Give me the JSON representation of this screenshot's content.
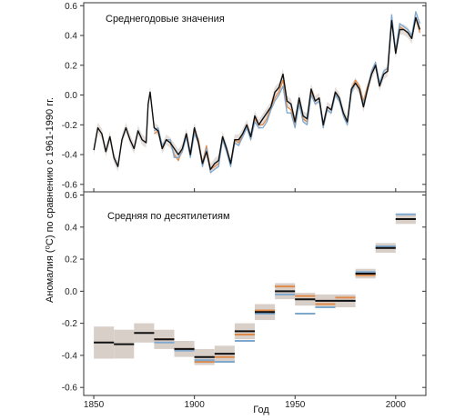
{
  "chart_data": {
    "type": "line",
    "ylabel": "Аномалия (⁰С) по сравнению с 1961-1990 гг.",
    "xlabel": "Год",
    "xlim": [
      1845,
      2015
    ],
    "x_ticks": [
      1850,
      1900,
      1950,
      2000
    ],
    "x_tick_labels": [
      "1850",
      "1900",
      "1950",
      "2000"
    ],
    "legend": "none",
    "grid": false,
    "series_colors": {
      "black": "#111111",
      "blue": "#7fa8cf",
      "orange": "#e08a4a",
      "grey": "#9a9a9a"
    },
    "panels": [
      {
        "type": "line",
        "title": "Среднегодовые значения",
        "ylim": [
          -0.65,
          0.62
        ],
        "y_ticks": [
          0.6,
          0.4,
          0.2,
          0.0,
          -0.2,
          -0.4,
          -0.6
        ],
        "y_tick_labels": [
          "0.6",
          "0.4",
          "0.2",
          "0.0",
          "-0.2",
          "-0.4",
          "-0.6"
        ],
        "series": [
          {
            "color": "black",
            "x": [
              1850,
              1852,
              1854,
              1856,
              1858,
              1860,
              1862,
              1864,
              1866,
              1868,
              1870,
              1872,
              1874,
              1876,
              1877,
              1878,
              1880,
              1882,
              1884,
              1886,
              1888,
              1890,
              1892,
              1894,
              1896,
              1898,
              1900,
              1902,
              1904,
              1906,
              1908,
              1910,
              1912,
              1914,
              1916,
              1918,
              1920,
              1922,
              1924,
              1926,
              1928,
              1930,
              1932,
              1934,
              1936,
              1938,
              1940,
              1942,
              1944,
              1946,
              1948,
              1950,
              1952,
              1954,
              1956,
              1958,
              1960,
              1962,
              1964,
              1966,
              1968,
              1970,
              1972,
              1974,
              1976,
              1978,
              1980,
              1982,
              1984,
              1986,
              1988,
              1990,
              1992,
              1994,
              1996,
              1998,
              2000,
              2002,
              2004,
              2006,
              2008,
              2010,
              2012
            ],
            "y": [
              -0.37,
              -0.22,
              -0.26,
              -0.38,
              -0.28,
              -0.42,
              -0.48,
              -0.3,
              -0.22,
              -0.3,
              -0.36,
              -0.24,
              -0.3,
              -0.32,
              -0.06,
              0.02,
              -0.22,
              -0.24,
              -0.36,
              -0.3,
              -0.32,
              -0.36,
              -0.4,
              -0.36,
              -0.26,
              -0.4,
              -0.22,
              -0.32,
              -0.46,
              -0.38,
              -0.5,
              -0.46,
              -0.44,
              -0.28,
              -0.36,
              -0.46,
              -0.3,
              -0.3,
              -0.26,
              -0.2,
              -0.28,
              -0.14,
              -0.2,
              -0.16,
              -0.12,
              -0.08,
              0.02,
              0.05,
              0.14,
              -0.04,
              -0.06,
              -0.18,
              -0.02,
              -0.14,
              -0.16,
              0.04,
              -0.04,
              -0.02,
              -0.2,
              -0.08,
              -0.1,
              0.02,
              -0.02,
              -0.12,
              -0.18,
              0.04,
              0.08,
              0.04,
              -0.08,
              0.04,
              0.14,
              0.2,
              0.06,
              0.14,
              0.16,
              0.5,
              0.28,
              0.44,
              0.44,
              0.42,
              0.38,
              0.52,
              0.44
            ]
          },
          {
            "color": "blue",
            "x": [
              1880,
              1882,
              1884,
              1886,
              1888,
              1890,
              1892,
              1894,
              1896,
              1898,
              1900,
              1902,
              1904,
              1906,
              1908,
              1910,
              1912,
              1914,
              1916,
              1918,
              1920,
              1922,
              1924,
              1926,
              1928,
              1930,
              1932,
              1934,
              1936,
              1938,
              1940,
              1942,
              1944,
              1946,
              1948,
              1950,
              1952,
              1954,
              1956,
              1958,
              1960,
              1962,
              1964,
              1966,
              1968,
              1970,
              1972,
              1974,
              1976,
              1978,
              1980,
              1982,
              1984,
              1986,
              1988,
              1990,
              1992,
              1994,
              1996,
              1998,
              2000,
              2002,
              2004,
              2006,
              2008,
              2010,
              2012
            ],
            "y": [
              -0.24,
              -0.22,
              -0.34,
              -0.3,
              -0.3,
              -0.42,
              -0.42,
              -0.38,
              -0.28,
              -0.42,
              -0.26,
              -0.32,
              -0.48,
              -0.36,
              -0.52,
              -0.5,
              -0.48,
              -0.3,
              -0.38,
              -0.48,
              -0.32,
              -0.34,
              -0.28,
              -0.22,
              -0.3,
              -0.18,
              -0.22,
              -0.22,
              -0.18,
              -0.1,
              -0.04,
              0.0,
              0.06,
              -0.12,
              -0.12,
              -0.22,
              -0.06,
              -0.18,
              -0.2,
              0.0,
              -0.06,
              -0.04,
              -0.22,
              -0.1,
              -0.12,
              0.0,
              -0.04,
              -0.14,
              -0.2,
              0.02,
              0.08,
              0.04,
              -0.06,
              0.04,
              0.16,
              0.22,
              0.08,
              0.16,
              0.18,
              0.54,
              0.3,
              0.48,
              0.46,
              0.44,
              0.4,
              0.56,
              0.48
            ]
          },
          {
            "color": "orange",
            "x": [
              1880,
              1882,
              1884,
              1886,
              1888,
              1890,
              1892,
              1894,
              1896,
              1898,
              1900,
              1902,
              1904,
              1906,
              1908,
              1910,
              1912,
              1914,
              1916,
              1918,
              1920,
              1922,
              1924,
              1926,
              1928,
              1930,
              1932,
              1934,
              1936,
              1938,
              1940,
              1942,
              1944,
              1946,
              1948,
              1950,
              1952,
              1954,
              1956,
              1958,
              1960,
              1962,
              1964,
              1966,
              1968,
              1970,
              1972,
              1974,
              1976,
              1978,
              1980,
              1982,
              1984,
              1986,
              1988,
              1990,
              1992,
              1994,
              1996,
              1998,
              2000,
              2002,
              2004,
              2006,
              2008,
              2010,
              2012
            ],
            "y": [
              -0.26,
              -0.24,
              -0.36,
              -0.3,
              -0.32,
              -0.4,
              -0.44,
              -0.36,
              -0.26,
              -0.4,
              -0.24,
              -0.3,
              -0.46,
              -0.34,
              -0.5,
              -0.48,
              -0.46,
              -0.28,
              -0.36,
              -0.46,
              -0.3,
              -0.32,
              -0.26,
              -0.2,
              -0.28,
              -0.16,
              -0.2,
              -0.2,
              -0.16,
              -0.08,
              -0.02,
              0.02,
              0.1,
              -0.08,
              -0.1,
              -0.2,
              -0.04,
              -0.16,
              -0.18,
              0.02,
              -0.04,
              -0.02,
              -0.2,
              -0.08,
              -0.1,
              0.02,
              -0.02,
              -0.12,
              -0.18,
              0.04,
              0.1,
              0.06,
              -0.04,
              0.06,
              0.14,
              0.2,
              0.06,
              0.14,
              0.16,
              0.52,
              0.28,
              0.46,
              0.44,
              0.42,
              0.38,
              0.52,
              0.42
            ]
          }
        ]
      },
      {
        "type": "step",
        "title": "Средняя по десятилетиям",
        "ylim": [
          -0.65,
          0.62
        ],
        "y_ticks": [
          0.6,
          0.4,
          0.2,
          0.0,
          -0.2,
          -0.4,
          -0.6
        ],
        "y_tick_labels": [
          "0.6",
          "0.4",
          "0.2",
          "0.0",
          "-0.2",
          "-0.4",
          "-0.6"
        ],
        "decades": [
          1850,
          1860,
          1870,
          1880,
          1890,
          1900,
          1910,
          1920,
          1930,
          1940,
          1950,
          1960,
          1970,
          1980,
          1990,
          2000
        ],
        "decade_width": 10,
        "uncertainty": [
          0.1,
          0.09,
          0.06,
          0.06,
          0.05,
          0.05,
          0.05,
          0.05,
          0.05,
          0.05,
          0.04,
          0.04,
          0.04,
          0.03,
          0.03,
          0.03
        ],
        "series": [
          {
            "color": "black",
            "values": [
              -0.32,
              -0.33,
              -0.26,
              -0.3,
              -0.36,
              -0.41,
              -0.39,
              -0.25,
              -0.13,
              0.0,
              -0.05,
              -0.06,
              -0.06,
              0.11,
              0.27,
              0.45
            ]
          },
          {
            "color": "blue",
            "values": [
              null,
              null,
              null,
              -0.32,
              -0.37,
              -0.43,
              -0.44,
              -0.31,
              -0.14,
              -0.02,
              -0.14,
              -0.1,
              -0.06,
              0.12,
              0.28,
              0.48
            ]
          },
          {
            "color": "orange",
            "values": [
              null,
              null,
              null,
              -0.3,
              -0.36,
              -0.44,
              -0.41,
              -0.27,
              -0.12,
              0.03,
              -0.03,
              -0.08,
              -0.04,
              0.1,
              0.27,
              0.45
            ]
          }
        ]
      }
    ]
  }
}
